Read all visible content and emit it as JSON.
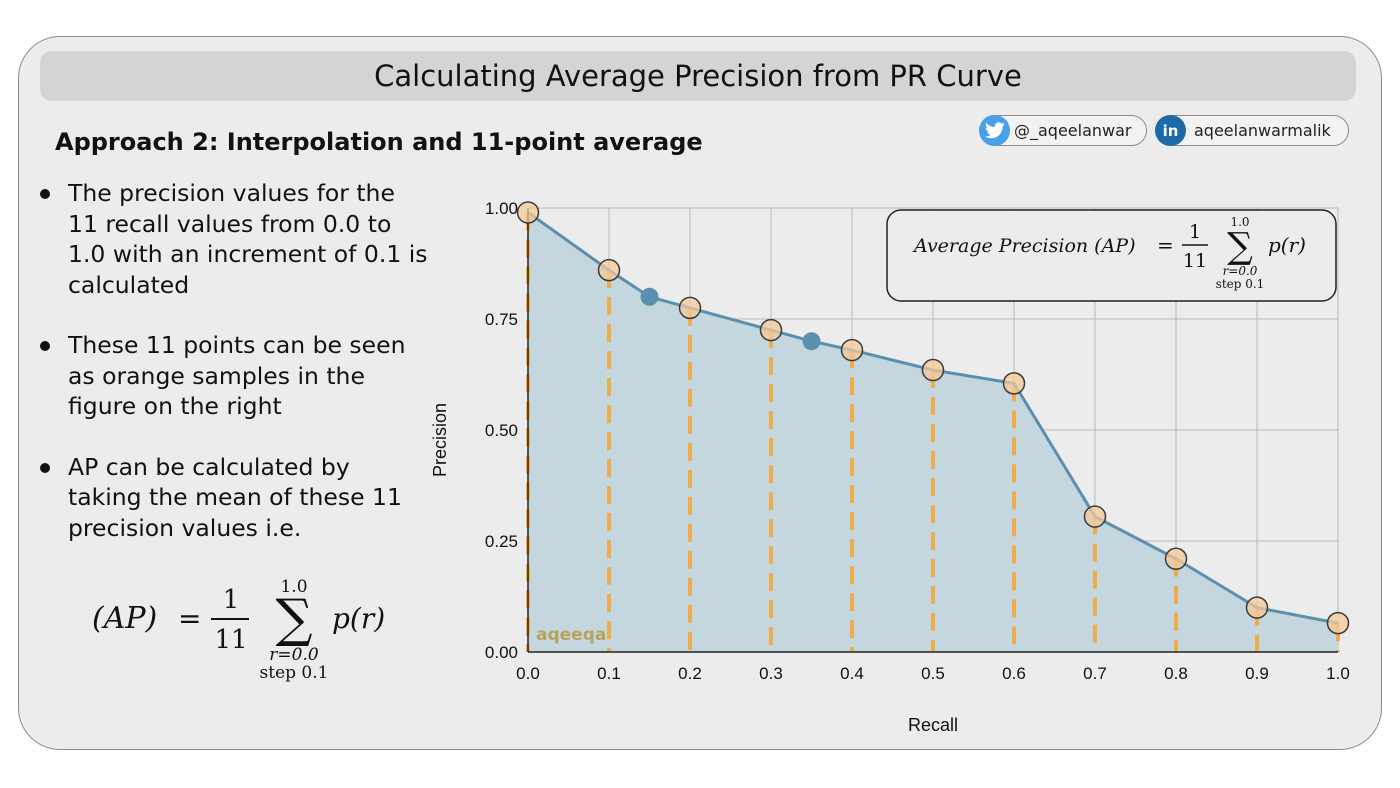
{
  "title": "Calculating Average Precision from PR Curve",
  "subtitle": "Approach 2: Interpolation and 11-point average",
  "social": {
    "twitter_handle": "@_aqeelanwar",
    "linkedin_handle": "aqeelanwarmalik",
    "linkedin_icon_text": "in"
  },
  "bullets": [
    "The precision values for the 11 recall values from 0.0 to 1.0 with an increment of 0.1 is calculated",
    "These 11 points can be seen as orange samples in the figure on the right",
    "AP can be calculated by taking the mean of these 11 precision values i.e."
  ],
  "formula": {
    "lhs": "(AP)",
    "chart_lhs": "Average Precision (AP)",
    "eq": "=",
    "numerator": "1",
    "denominator": "11",
    "sum_symbol": "∑",
    "upper": "1.0",
    "lower": "r=0.0",
    "step": "step 0.1",
    "term": "p(r)"
  },
  "watermark": "aqeeqa",
  "colors": {
    "curve": "#5a8fae",
    "fill": "#c4d6de",
    "sample_fill": "#f5c99a",
    "dashed_line": "#f0ac4b",
    "grid": "#b8b8b8"
  },
  "chart_data": {
    "type": "area",
    "xlabel": "Recall",
    "ylabel": "Precision",
    "xlim": [
      0.0,
      1.0
    ],
    "ylim": [
      0.0,
      1.0
    ],
    "xticks": [
      "0.0",
      "0.1",
      "0.2",
      "0.3",
      "0.4",
      "0.5",
      "0.6",
      "0.7",
      "0.8",
      "0.9",
      "1.0"
    ],
    "yticks": [
      "0.00",
      "0.25",
      "0.50",
      "0.75",
      "1.00"
    ],
    "grid": true,
    "curve": {
      "x": [
        0.0,
        0.1,
        0.15,
        0.2,
        0.3,
        0.35,
        0.4,
        0.5,
        0.6,
        0.7,
        0.8,
        0.9,
        1.0
      ],
      "y": [
        0.99,
        0.86,
        0.8,
        0.775,
        0.725,
        0.7,
        0.68,
        0.635,
        0.605,
        0.305,
        0.21,
        0.1,
        0.065
      ]
    },
    "extra_points": {
      "x": [
        0.15,
        0.35
      ],
      "y": [
        0.8,
        0.7
      ]
    },
    "interpolated_samples": {
      "recall": [
        0.0,
        0.1,
        0.2,
        0.3,
        0.4,
        0.5,
        0.6,
        0.7,
        0.8,
        0.9,
        1.0
      ],
      "precision": [
        0.99,
        0.86,
        0.775,
        0.725,
        0.68,
        0.635,
        0.605,
        0.305,
        0.21,
        0.1,
        0.065
      ]
    }
  }
}
